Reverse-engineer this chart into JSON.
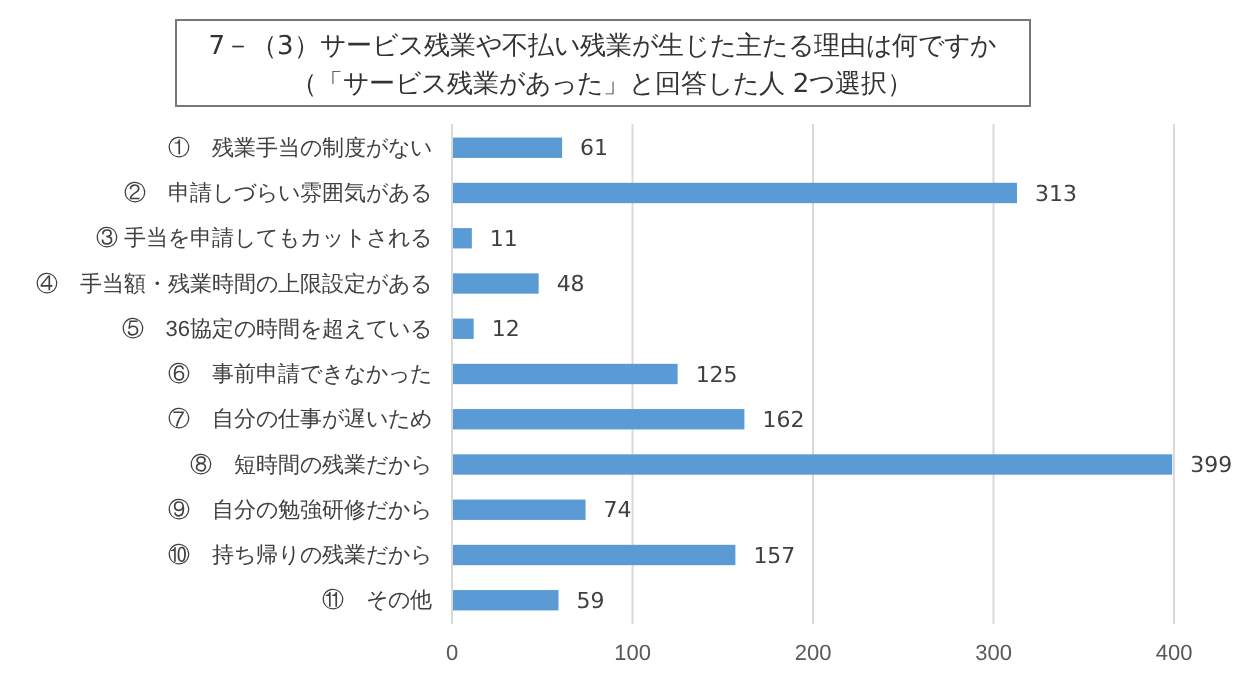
{
  "chart_data": {
    "type": "bar",
    "orientation": "horizontal",
    "title": "7－（3）サービス残業や不払い残業が生じた主たる理由は何ですか",
    "subtitle": "（「サービス残業があった」と回答した人 2つ選択）",
    "categories": [
      "①　残業手当の制度がない",
      "②　申請しづらい雰囲気がある",
      "③ 手当を申請してもカットされる",
      "④　手当額・残業時間の上限設定がある",
      "⑤　36協定の時間を超えている",
      "⑥　事前申請できなかった",
      "⑦　自分の仕事が遅いため",
      "⑧　短時間の残業だから",
      "⑨　自分の勉強研修だから",
      "⑩　持ち帰りの残業だから",
      "⑪　その他"
    ],
    "values": [
      61,
      313,
      11,
      48,
      12,
      125,
      162,
      399,
      74,
      157,
      59
    ],
    "color": "#5b9bd5",
    "xlim": [
      0,
      400
    ],
    "xticks": [
      0,
      100,
      200,
      300,
      400
    ],
    "grid": "x",
    "data_labels": true
  }
}
